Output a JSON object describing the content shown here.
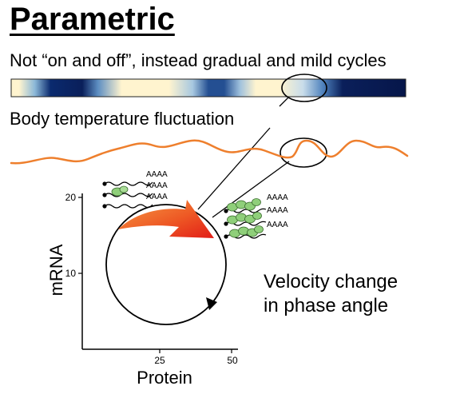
{
  "title": "Parametric",
  "subtitle": "Not “on and off”, instead gradual and mild cycles",
  "fluctuation_label": "Body temperature fluctuation",
  "velocity_label": [
    "Velocity change",
    "in phase angle"
  ],
  "axes": {
    "y_label": "mRNA",
    "x_label": "Protein",
    "y_ticks": [
      "20",
      "10"
    ],
    "x_ticks": [
      "25",
      "50"
    ]
  },
  "poly_a_tail": "AAAA",
  "colors": {
    "temperature_wave": "#ee7f2d",
    "heatmap_dark": "#0a1f5a",
    "heatmap_light": "#fff4cf",
    "ribosome_green": "#8fcf7a",
    "arrow_red": "#e8351f",
    "arrow_orange": "#f08a3a"
  },
  "icons": [
    "ribosome-icon",
    "mrna-strand-icon",
    "cycle-arrow-icon"
  ]
}
